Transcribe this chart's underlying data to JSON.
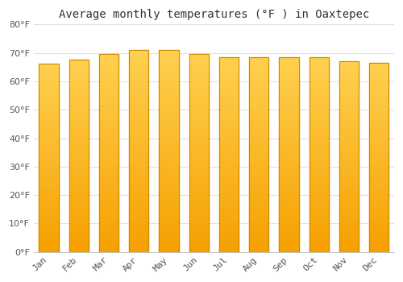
{
  "months": [
    "Jan",
    "Feb",
    "Mar",
    "Apr",
    "May",
    "Jun",
    "Jul",
    "Aug",
    "Sep",
    "Oct",
    "Nov",
    "Dec"
  ],
  "values": [
    66.2,
    67.6,
    69.6,
    71.0,
    71.0,
    69.5,
    68.5,
    68.5,
    68.5,
    68.5,
    67.0,
    66.4
  ],
  "bar_color_light": "#FFD050",
  "bar_color_dark": "#F5A000",
  "bar_edge_color": "#CC8800",
  "title": "Average monthly temperatures (°F ) in Oaxtepec",
  "ylim": [
    0,
    80
  ],
  "ytick_interval": 10,
  "background_color": "#FFFFFF",
  "plot_bg_color": "#FFFFFF",
  "grid_color": "#E0E0E8",
  "title_fontsize": 10,
  "tick_fontsize": 8,
  "bar_width": 0.65
}
